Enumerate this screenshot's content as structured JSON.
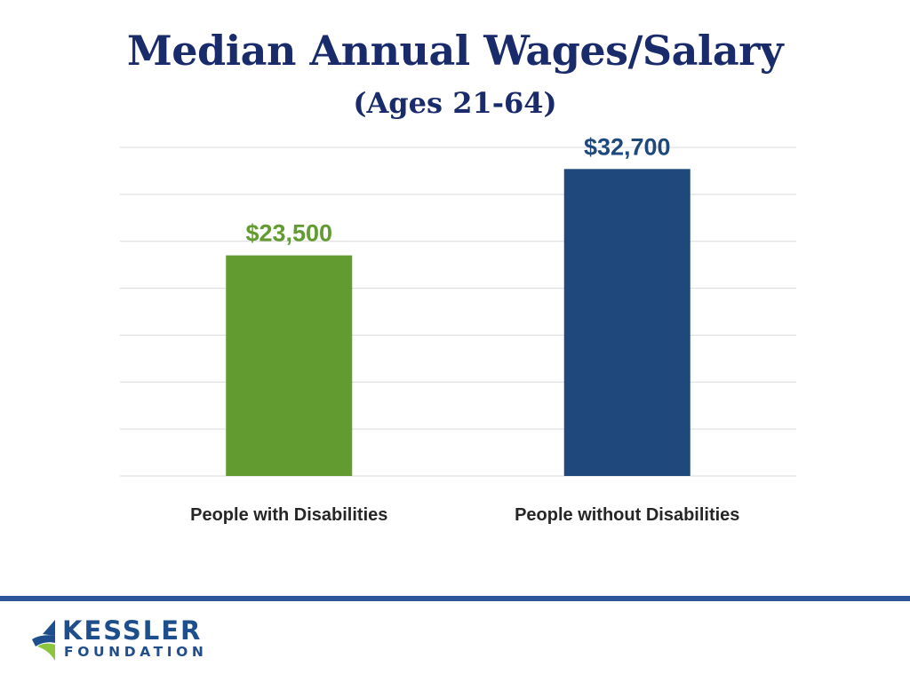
{
  "chart_data": {
    "type": "bar",
    "title": "Median Annual Wages/Salary",
    "subtitle": "(Ages 21-64)",
    "categories": [
      "People with Disabilities",
      "People without Disabilities"
    ],
    "values": [
      23500,
      32700
    ],
    "value_labels": [
      "$23,500",
      "$32,700"
    ],
    "bar_colors": [
      "#629b2f",
      "#1f497d"
    ],
    "ylim": [
      0,
      35000
    ],
    "grid": true,
    "legend": "none"
  },
  "logo": {
    "name": "KESSLER",
    "sub": "FOUNDATION",
    "colors": {
      "blue": "#1f4e8c",
      "green": "#8cc63f"
    }
  },
  "colors": {
    "title": "#1a2b6b",
    "divider": "#2b5598",
    "gridline": "#d9d9d9"
  }
}
